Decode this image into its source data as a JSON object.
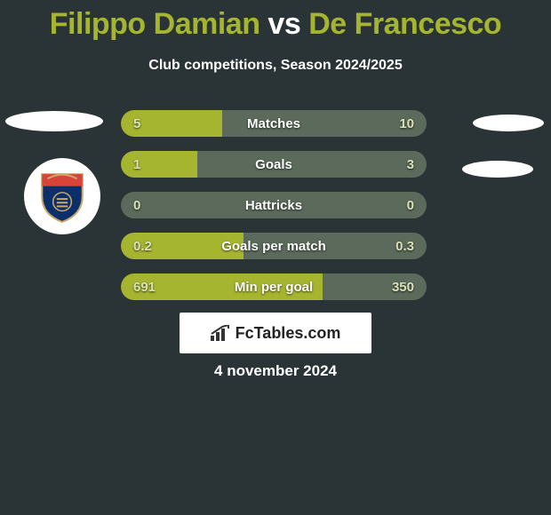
{
  "title": {
    "player1": "Filippo Damian",
    "vs": "vs",
    "player2": "De Francesco"
  },
  "subtitle": "Club competitions, Season 2024/2025",
  "brand": "FcTables.com",
  "date": "4 november 2024",
  "colors": {
    "bar_fill": "#a6b52f",
    "bar_empty": "#5b6a5a",
    "label_text": "#ffffff",
    "value_text": "#d9e0b8",
    "background": "#2a3436"
  },
  "bars": [
    {
      "label": "Matches",
      "left_val": "5",
      "right_val": "10",
      "fill_pct": 33
    },
    {
      "label": "Goals",
      "left_val": "1",
      "right_val": "3",
      "fill_pct": 25
    },
    {
      "label": "Hattricks",
      "left_val": "0",
      "right_val": "0",
      "fill_pct": 0
    },
    {
      "label": "Goals per match",
      "left_val": "0.2",
      "right_val": "0.3",
      "fill_pct": 40
    },
    {
      "label": "Min per goal",
      "left_val": "691",
      "right_val": "350",
      "fill_pct": 66
    }
  ]
}
